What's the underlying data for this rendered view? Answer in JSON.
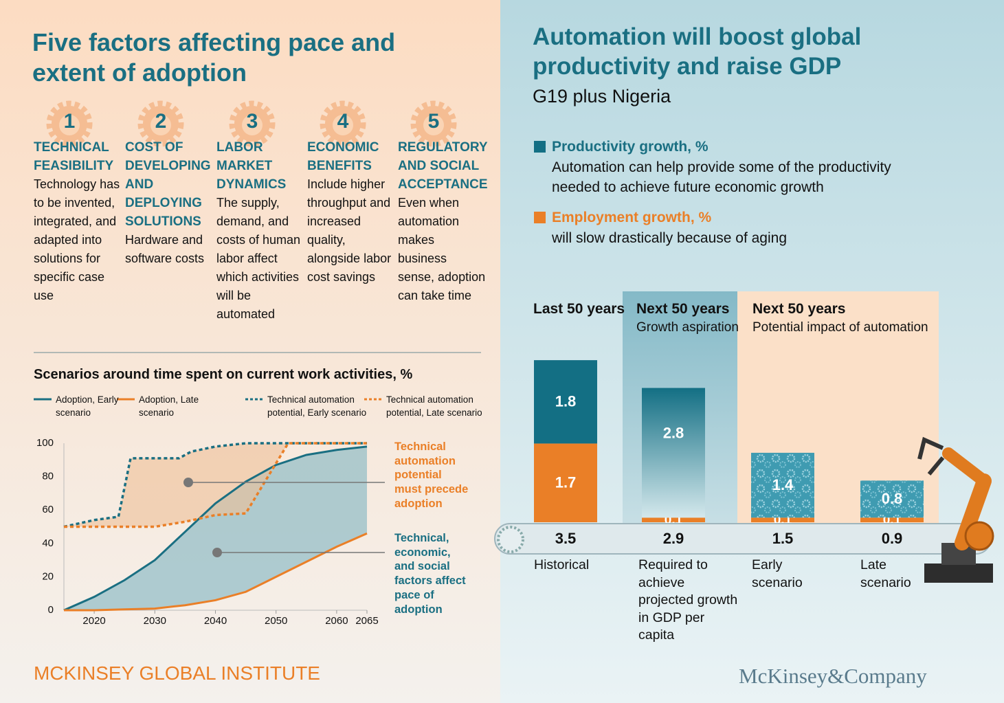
{
  "left": {
    "title": "Five factors affecting pace and extent of adoption",
    "factors": [
      {
        "number": 1,
        "heading": "TECHNICAL FEASIBILITY",
        "text": "Technology has to be invented, integrated, and adapted into solutions for specific case use"
      },
      {
        "number": 2,
        "heading": "COST OF DEVELOPING AND DEPLOYING SOLUTIONS",
        "text": "Hardware and software costs"
      },
      {
        "number": 3,
        "heading": "LABOR MARKET DYNAMICS",
        "text": "The supply, demand, and costs of human labor affect which activities will be automated"
      },
      {
        "number": 4,
        "heading": "ECONOMIC BENEFITS",
        "text": "Include higher throughput and increased quality, alongside labor cost savings"
      },
      {
        "number": 5,
        "heading": "REGULATORY AND SOCIAL ACCEPTANCE",
        "text": "Even when automation makes business sense, adoption can take time"
      }
    ],
    "footer": "MCKINSEY GLOBAL INSTITUTE"
  },
  "right": {
    "footer": "McKinsey&Company"
  },
  "chart_data": [
    {
      "type": "line",
      "title": "Scenarios around time spent on current work activities, %",
      "xlim": [
        2015,
        2065
      ],
      "xticks": [
        2020,
        2030,
        2040,
        2050,
        2060,
        2065
      ],
      "ylim": [
        0,
        100
      ],
      "yticks": [
        0,
        20,
        40,
        60,
        80,
        100
      ],
      "grid": false,
      "series": [
        {
          "name": "Adoption, Early scenario",
          "color": "#1a6f82",
          "line_style": "solid",
          "x": [
            2015,
            2020,
            2025,
            2030,
            2035,
            2040,
            2045,
            2050,
            2055,
            2060,
            2065
          ],
          "values": [
            0,
            8,
            18,
            30,
            47,
            64,
            77,
            87,
            93,
            96,
            98
          ]
        },
        {
          "name": "Adoption, Late scenario",
          "color": "#ea7f27",
          "line_style": "solid",
          "x": [
            2015,
            2020,
            2025,
            2030,
            2035,
            2040,
            2045,
            2050,
            2055,
            2060,
            2065
          ],
          "values": [
            0,
            0,
            0.5,
            1,
            3,
            6,
            11,
            20,
            29,
            38,
            46
          ]
        },
        {
          "name": "Technical automation potential, Early scenario",
          "color": "#1a6f82",
          "line_style": "dotted",
          "x": [
            2015,
            2020,
            2024,
            2026,
            2030,
            2034,
            2036,
            2040,
            2045,
            2065
          ],
          "values": [
            50,
            54,
            56,
            91,
            91,
            91,
            95,
            98,
            100,
            100
          ]
        },
        {
          "name": "Technical automation potential, Late scenario",
          "color": "#ea7f27",
          "line_style": "dotted",
          "x": [
            2015,
            2030,
            2035,
            2040,
            2045,
            2048,
            2052,
            2065
          ],
          "values": [
            50,
            50,
            53,
            57,
            58,
            76,
            100,
            100
          ]
        }
      ],
      "bands": [
        {
          "between": [
            0,
            1
          ],
          "color": "#7fb4c2"
        },
        {
          "between": [
            2,
            3
          ],
          "color": "#efbf98"
        }
      ],
      "annotations": [
        {
          "text": "Technical automation potential must precede adoption",
          "color": "#ea7f27"
        },
        {
          "text": "Technical, economic, and social factors affect pace of adoption",
          "color": "#1a6f82"
        }
      ]
    },
    {
      "type": "bar",
      "stacked": true,
      "title": "Automation will boost global productivity and raise GDP",
      "subtitle": "G19 plus Nigeria",
      "categories": [
        "Historical",
        "Required to achieve projected growth in GDP per capita",
        "Early scenario",
        "Late scenario"
      ],
      "series": [
        {
          "name": "Productivity growth, %",
          "description": "Automation can help provide some of the productivity needed to achieve future economic growth",
          "color": "#136f84",
          "values": [
            1.8,
            2.8,
            1.4,
            0.8
          ]
        },
        {
          "name": "Employment growth, %",
          "description": "will slow drastically because of aging",
          "color": "#ea7f27",
          "values": [
            1.7,
            0.1,
            0.1,
            0.1
          ]
        }
      ],
      "totals": [
        3.5,
        2.9,
        1.5,
        0.9
      ],
      "groups": [
        {
          "title": "Last 50 years"
        },
        {
          "title": "Next 50 years",
          "subtitle": "Growth aspiration"
        },
        {
          "title": "Next 50 years",
          "subtitle": "Potential impact of automation"
        }
      ]
    }
  ]
}
